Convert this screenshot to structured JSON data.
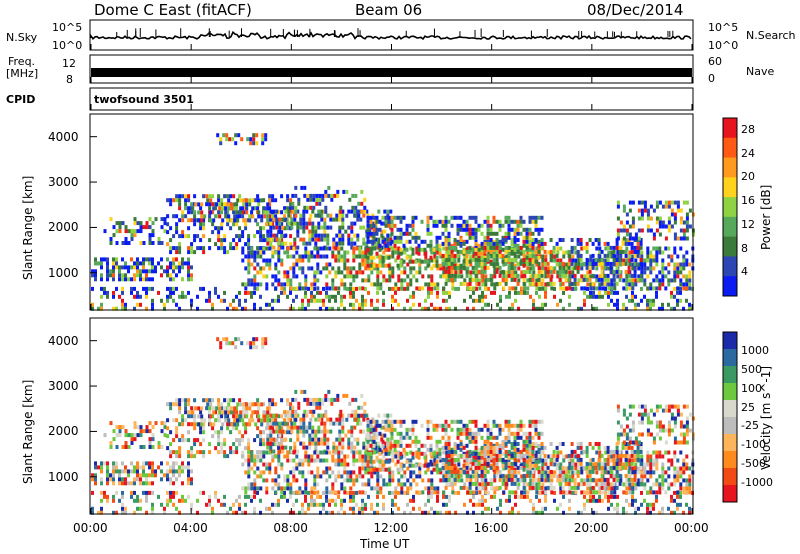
{
  "header": {
    "site": "Dome C East (fitACF)",
    "beam": "Beam 06",
    "date": "08/Dec/2014"
  },
  "left_labels": {
    "nsky": "N.Sky",
    "nsky_top": "10^5",
    "nsky_bottom": "10^0",
    "freq_l1": "Freq.",
    "freq_l2": "[MHz]",
    "freq_top": "12",
    "freq_bottom": "8",
    "cpid": "CPID"
  },
  "right_labels": {
    "nsearch": "N.Search",
    "nsearch_top": "10^5",
    "nsearch_bottom": "10^0",
    "nave": "Nave",
    "nave_top": "60",
    "nave_bottom": "0"
  },
  "cpid_text": "twofsound 3501",
  "colors": {
    "power": [
      "#0b1cf2",
      "#2c46b4",
      "#3a7a3a",
      "#56a85a",
      "#8fd242",
      "#ffd21e",
      "#ff9a1e",
      "#ff5a14",
      "#e6141e"
    ],
    "velocity": [
      "#e6141e",
      "#f24a14",
      "#ff8a1e",
      "#fdb45a",
      "#bdbdbd",
      "#d8d8cc",
      "#6cc83c",
      "#3a9a64",
      "#2a6aa0",
      "#1a2aa8"
    ]
  },
  "chart_data": [
    {
      "type": "heatmap",
      "title": "",
      "xlabel": "",
      "ylabel": "Slant Range [km]",
      "xlim": [
        "00:00",
        "00:00"
      ],
      "x_ticks": [
        "00:00",
        "04:00",
        "08:00",
        "12:00",
        "16:00",
        "20:00",
        "00:00"
      ],
      "ylim": [
        180,
        4500
      ],
      "y_ticks": [
        "1000",
        "2000",
        "3000",
        "4000"
      ],
      "colorbar": {
        "label": "Power [dB]",
        "range": [
          0,
          30
        ],
        "ticks": [
          "4",
          "8",
          "12",
          "16",
          "20",
          "24",
          "28"
        ]
      }
    },
    {
      "type": "heatmap",
      "title": "",
      "xlabel": "Time UT",
      "ylabel": "Slant Range [km]",
      "xlim": [
        "00:00",
        "00:00"
      ],
      "x_ticks": [
        "00:00",
        "04:00",
        "08:00",
        "12:00",
        "16:00",
        "20:00",
        "00:00"
      ],
      "ylim": [
        180,
        4500
      ],
      "y_ticks": [
        "1000",
        "2000",
        "3000",
        "4000"
      ],
      "colorbar": {
        "label": "Velocity [m s^-1]",
        "levels": [
          "1000",
          "500",
          "100",
          "25",
          "-25",
          "-100",
          "-500",
          "-1000"
        ]
      }
    }
  ]
}
